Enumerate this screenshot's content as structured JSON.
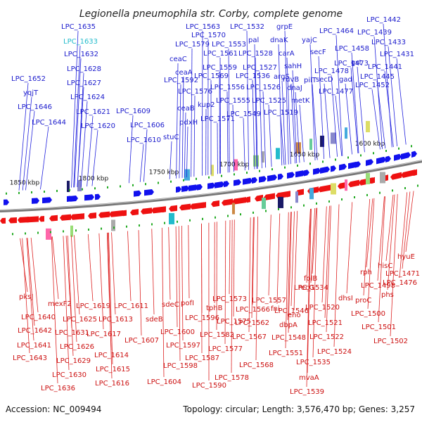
{
  "title": "Legionella pneumophila str. Corby, complete genome",
  "footer": {
    "accession": "Accession: NC_009494",
    "topology": "Topology: circular; Length: 3,576,470 bp; Genes: 3,257"
  },
  "colors": {
    "forward": "#1111ee",
    "reverse": "#ee1111",
    "backbone": "#777777",
    "highlight": "#22bbcc"
  },
  "kbp_marks": [
    "1850 kbp",
    "1800 kbp",
    "1750 kbp",
    "1700 kbp",
    "1650 kbp",
    "1600 kbp"
  ],
  "forward_labels": [
    "LPC_1635",
    "LPC_1633",
    "LPC_1632",
    "LPC_1628",
    "LPC_1627",
    "LPC_1624",
    "LPC_1621",
    "LPC_1620",
    "LPC_1652",
    "yqjT",
    "LPC_1646",
    "LPC_1644",
    "LPC_1609",
    "LPC_1606",
    "LPC_1610",
    "LPC_1563",
    "LPC_1570",
    "LPC_1579",
    "ceaC",
    "ceaA",
    "LPC_1592",
    "LPC_1576",
    "ceaB",
    "pdxH",
    "stuC",
    "LPC_1553",
    "LPC_1561",
    "LPC_1559",
    "LPC_1569",
    "kup2",
    "LPC_1571",
    "LPC_1556",
    "LPC_1555",
    "LPC_1549",
    "LPC_1532",
    "pal",
    "LPC_1528",
    "LPC_1527",
    "LPC_1536",
    "LPC_1526",
    "LPC_1525",
    "grpE",
    "dnaK",
    "carA",
    "sahH",
    "argS",
    "ruvB",
    "dnaJ",
    "metK",
    "LPC_1519",
    "pilT",
    "yajC",
    "secF",
    "secD",
    "LPC_1478",
    "LPC_1477",
    "LPC_1473",
    "gad",
    "gst",
    "LPC_1464",
    "LPC_1458",
    "LPC_1442",
    "LPC_1439",
    "LPC_1433",
    "LPC_1431",
    "LPC_1441",
    "LPC_1445",
    "LPC_1452"
  ],
  "reverse_labels": [
    "pksJ",
    "mexF2",
    "LPC_1640",
    "LPC_1642",
    "LPC_1641",
    "LPC_1643",
    "LPC_1625",
    "LPC_1631",
    "LPC_1626",
    "LPC_1629",
    "LPC_1630",
    "LPC_1636",
    "LPC_1619",
    "LPC_1617",
    "LPC_1614",
    "LPC_1615",
    "LPC_1616",
    "LPC_1611",
    "LPC_1613",
    "sdeB",
    "LPC_1607",
    "sdeC",
    "pofI",
    "LPC_1600",
    "LPC_1597",
    "LPC_1598",
    "LPC_1604",
    "LPC_1596",
    "LPC_1587",
    "LPC_1590",
    "tphB",
    "LPC_1582",
    "LPC_1577",
    "LPC_1578",
    "LPC_1573",
    "LPC_1575",
    "LPC_1566",
    "LPC_1562",
    "LPC_1567",
    "LPC_1568",
    "LPC_1557",
    "fni",
    "LPC_1546",
    "LPC_1548",
    "LPC_1551",
    "dbpA",
    "LPC_1534",
    "eno",
    "LPC_1535",
    "mvaA",
    "LPC_1539",
    "folB",
    "recG",
    "LPC_1520",
    "LPC_1521",
    "LPC_1522",
    "LPC_1524",
    "dhsI",
    "rph",
    "LPC_1498",
    "proC",
    "LPC_1500",
    "LPC_1501",
    "LPC_1502",
    "hisC",
    "LPC_1471",
    "LPC_1476",
    "phs",
    "hyuE"
  ]
}
